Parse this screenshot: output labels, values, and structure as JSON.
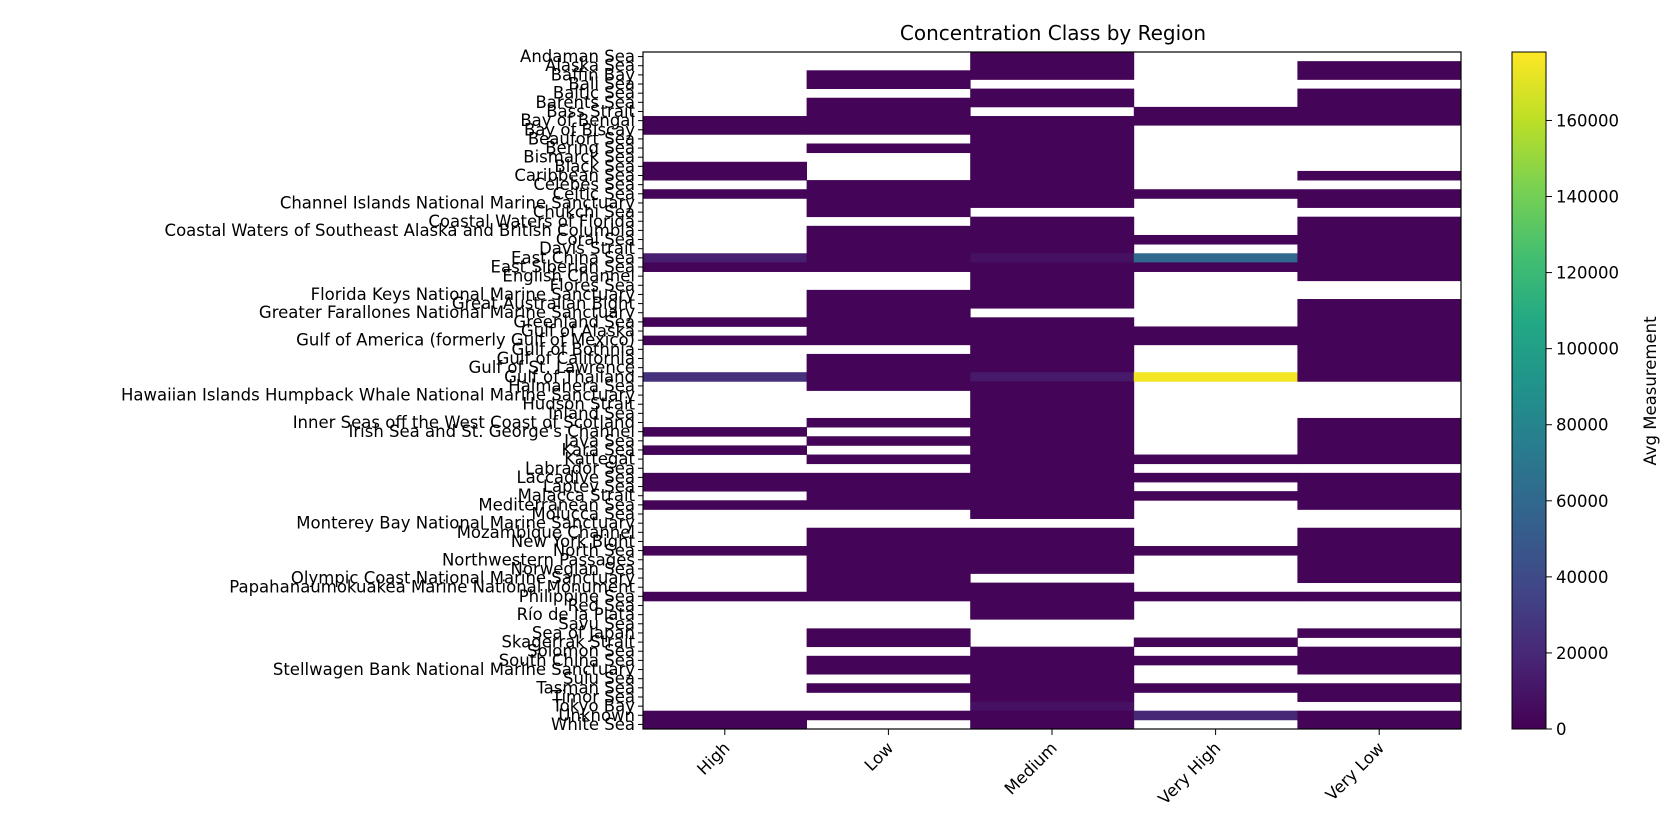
{
  "chart_data": {
    "type": "heatmap",
    "title": "Concentration Class by Region",
    "columns": [
      "High",
      "Low",
      "Medium",
      "Very High",
      "Very Low"
    ],
    "rows": [
      "Andaman Sea",
      "Alaska Sea",
      "Baffin Bay",
      "Bali Sea",
      "Baltic Sea",
      "Barents Sea",
      "Bass Strait",
      "Bay of Bengal",
      "Bay of Biscay",
      "Beaufort Sea",
      "Bering Sea",
      "Bismarck Sea",
      "Black Sea",
      "Caribbean Sea",
      "Celebes Sea",
      "Celtic Sea",
      "Channel Islands National Marine Sanctuary",
      "Chukchi Sea",
      "Coastal Waters of Florida",
      "Coastal Waters of Southeast Alaska and British Columbia",
      "Coral Sea",
      "Davis Strait",
      "East China Sea",
      "East Siberian Sea",
      "English Channel",
      "Flores Sea",
      "Florida Keys National Marine Sanctuary",
      "Great Australian Bight",
      "Greater Farallones National Marine Sanctuary",
      "Greenland Sea",
      "Gulf of Alaska",
      "Gulf of America (formerly Gulf of Mexico)",
      "Gulf of Bothnia",
      "Gulf of California",
      "Gulf of St. Lawrence",
      "Gulf of Thailand",
      "Halmahera Sea",
      "Hawaiian Islands Humpback Whale National Marine Sanctuary",
      "Hudson Strait",
      "Inland Sea",
      "Inner Seas off the West Coast of Scotland",
      "Irish Sea and St. George's Channel",
      "Java Sea",
      "Kara Sea",
      "Kattegat",
      "Labrador Sea",
      "Laccadive Sea",
      "Laptev Sea",
      "Malacca Strait",
      "Mediterranean Sea",
      "Molucca Sea",
      "Monterey Bay National Marine Sanctuary",
      "Mozambique Channel",
      "New York Bight",
      "North Sea",
      "Northwestern Passages",
      "Norwegian Sea",
      "Olympic Coast National Marine Sanctuary",
      "Papahanaumokuakea Marine National Monument",
      "Philippine Sea",
      "Red Sea",
      "Río de la Plata",
      "Savu Sea",
      "Sea of Japan",
      "Skagerrak Strait",
      "Solomon Sea",
      "South China Sea",
      "Stellwagen Bank National Marine Sanctuary",
      "Sulu Sea",
      "Tasman Sea",
      "Timor Sea",
      "Tokyo Bay",
      "Unknown",
      "White Sea"
    ],
    "values": [
      [
        null,
        null,
        1500,
        null,
        null
      ],
      [
        null,
        null,
        1500,
        null,
        1500
      ],
      [
        null,
        1500,
        1500,
        null,
        1500
      ],
      [
        null,
        1500,
        null,
        null,
        null
      ],
      [
        null,
        null,
        1500,
        null,
        1500
      ],
      [
        null,
        1500,
        1500,
        null,
        1500
      ],
      [
        null,
        1500,
        null,
        1500,
        1500
      ],
      [
        1500,
        1500,
        1500,
        1500,
        1500
      ],
      [
        1500,
        1500,
        1500,
        null,
        null
      ],
      [
        null,
        null,
        1500,
        null,
        null
      ],
      [
        null,
        1500,
        1500,
        null,
        null
      ],
      [
        null,
        null,
        1500,
        null,
        null
      ],
      [
        1500,
        null,
        1500,
        null,
        null
      ],
      [
        1500,
        null,
        1500,
        null,
        1500
      ],
      [
        null,
        1500,
        1500,
        null,
        null
      ],
      [
        1500,
        1500,
        1500,
        1500,
        1500
      ],
      [
        null,
        1500,
        1500,
        null,
        1500
      ],
      [
        null,
        1500,
        null,
        null,
        null
      ],
      [
        null,
        null,
        1500,
        null,
        1500
      ],
      [
        null,
        1500,
        1500,
        null,
        1500
      ],
      [
        null,
        1500,
        1500,
        1500,
        1500
      ],
      [
        null,
        1500,
        1500,
        null,
        1500
      ],
      [
        15000,
        1500,
        8000,
        60000,
        1500
      ],
      [
        1500,
        1500,
        1500,
        1500,
        1500
      ],
      [
        null,
        null,
        1500,
        null,
        1500
      ],
      [
        null,
        null,
        1500,
        null,
        null
      ],
      [
        null,
        1500,
        1500,
        null,
        null
      ],
      [
        null,
        1500,
        1500,
        null,
        1500
      ],
      [
        null,
        1500,
        null,
        null,
        1500
      ],
      [
        1500,
        1500,
        1500,
        null,
        1500
      ],
      [
        null,
        1500,
        1500,
        1500,
        1500
      ],
      [
        1500,
        1500,
        1500,
        1500,
        1500
      ],
      [
        null,
        null,
        1500,
        null,
        1500
      ],
      [
        null,
        1500,
        1500,
        null,
        1500
      ],
      [
        null,
        1500,
        1500,
        null,
        1500
      ],
      [
        25000,
        1500,
        12000,
        175000,
        1500
      ],
      [
        null,
        1500,
        1500,
        null,
        null
      ],
      [
        null,
        null,
        1500,
        null,
        null
      ],
      [
        null,
        null,
        1500,
        null,
        null
      ],
      [
        null,
        null,
        1500,
        null,
        null
      ],
      [
        null,
        1500,
        1500,
        null,
        1500
      ],
      [
        1500,
        null,
        1500,
        null,
        1500
      ],
      [
        null,
        1500,
        1500,
        null,
        1500
      ],
      [
        1500,
        null,
        1500,
        null,
        1500
      ],
      [
        null,
        1500,
        1500,
        1500,
        1500
      ],
      [
        null,
        null,
        1500,
        null,
        null
      ],
      [
        1500,
        1500,
        1500,
        1500,
        1500
      ],
      [
        1500,
        1500,
        1500,
        null,
        1500
      ],
      [
        null,
        1500,
        1500,
        1500,
        1500
      ],
      [
        1500,
        1500,
        1500,
        null,
        1500
      ],
      [
        null,
        null,
        1500,
        null,
        null
      ],
      [
        null,
        null,
        null,
        null,
        null
      ],
      [
        null,
        1500,
        1500,
        null,
        1500
      ],
      [
        null,
        1500,
        1500,
        null,
        1500
      ],
      [
        1500,
        1500,
        1500,
        1500,
        1500
      ],
      [
        null,
        1500,
        1500,
        null,
        1500
      ],
      [
        null,
        1500,
        1500,
        null,
        1500
      ],
      [
        null,
        1500,
        null,
        null,
        1500
      ],
      [
        null,
        1500,
        1500,
        null,
        null
      ],
      [
        1500,
        1500,
        1500,
        1500,
        1500
      ],
      [
        null,
        null,
        1500,
        null,
        null
      ],
      [
        null,
        null,
        1500,
        null,
        null
      ],
      [
        null,
        null,
        null,
        null,
        null
      ],
      [
        null,
        1500,
        null,
        null,
        1500
      ],
      [
        null,
        1500,
        null,
        1500,
        null
      ],
      [
        null,
        null,
        1500,
        null,
        1500
      ],
      [
        null,
        1500,
        1500,
        1500,
        1500
      ],
      [
        null,
        1500,
        1500,
        null,
        1500
      ],
      [
        null,
        null,
        1500,
        null,
        null
      ],
      [
        null,
        1500,
        1500,
        1500,
        1500
      ],
      [
        null,
        null,
        1500,
        null,
        1500
      ],
      [
        null,
        null,
        8000,
        null,
        null
      ],
      [
        1500,
        1500,
        1500,
        20000,
        1500
      ],
      [
        1500,
        null,
        1500,
        null,
        1500
      ]
    ],
    "colorbar": {
      "label": "Avg Measurement",
      "min": 0,
      "max": 178000,
      "ticks": [
        "0",
        "20000",
        "40000",
        "60000",
        "80000",
        "100000",
        "120000",
        "140000",
        "160000"
      ]
    },
    "colormap": "viridis"
  }
}
